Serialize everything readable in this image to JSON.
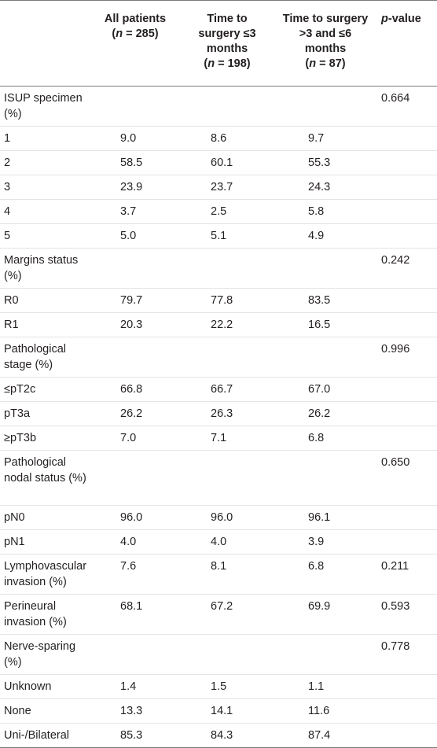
{
  "header": {
    "col0": "",
    "col1_line1": "All patients",
    "col1_n_label": "n",
    "col1_n_value": " = 285)",
    "col2_line1": "Time to",
    "col2_line2": "surgery ≤3",
    "col2_line3": "months",
    "col2_n_label": "n",
    "col2_n_value": " = 198)",
    "col3_line1": "Time to surgery",
    "col3_line2": ">3 and ≤6",
    "col3_line3": "months",
    "col3_n_label": "n",
    "col3_n_value": " = 87)",
    "col4_p": "p",
    "col4_rest": "-value"
  },
  "rows": [
    {
      "label": "ISUP specimen (%)",
      "all": "",
      "le3": "",
      "gt3": "",
      "p": "0.664"
    },
    {
      "label": "1",
      "all": "9.0",
      "le3": "8.6",
      "gt3": "9.7",
      "p": ""
    },
    {
      "label": "2",
      "all": "58.5",
      "le3": "60.1",
      "gt3": "55.3",
      "p": ""
    },
    {
      "label": "3",
      "all": "23.9",
      "le3": "23.7",
      "gt3": "24.3",
      "p": ""
    },
    {
      "label": "4",
      "all": "3.7",
      "le3": "2.5",
      "gt3": "5.8",
      "p": ""
    },
    {
      "label": "5",
      "all": "5.0",
      "le3": "5.1",
      "gt3": "4.9",
      "p": ""
    },
    {
      "label": "Margins status (%)",
      "all": "",
      "le3": "",
      "gt3": "",
      "p": "0.242"
    },
    {
      "label": "R0",
      "all": "79.7",
      "le3": "77.8",
      "gt3": "83.5",
      "p": ""
    },
    {
      "label": "R1",
      "all": "20.3",
      "le3": "22.2",
      "gt3": "16.5",
      "p": ""
    },
    {
      "label": "Pathological stage (%)",
      "all": "",
      "le3": "",
      "gt3": "",
      "p": "0.996"
    },
    {
      "label": "≤pT2c",
      "all": "66.8",
      "le3": "66.7",
      "gt3": "67.0",
      "p": ""
    },
    {
      "label": "pT3a",
      "all": "26.2",
      "le3": "26.3",
      "gt3": "26.2",
      "p": ""
    },
    {
      "label": "≥pT3b",
      "all": "7.0",
      "le3": "7.1",
      "gt3": "6.8",
      "p": ""
    },
    {
      "label": "Pathological nodal status (%)",
      "all": "",
      "le3": "",
      "gt3": "",
      "p": "0.650"
    },
    {
      "label": "pN0",
      "all": "96.0",
      "le3": "96.0",
      "gt3": "96.1",
      "p": ""
    },
    {
      "label": "pN1",
      "all": "4.0",
      "le3": "4.0",
      "gt3": "3.9",
      "p": ""
    },
    {
      "label": "Lymphovascular invasion (%)",
      "all": "7.6",
      "le3": "8.1",
      "gt3": "6.8",
      "p": "0.211"
    },
    {
      "label": "Perineural invasion (%)",
      "all": "68.1",
      "le3": "67.2",
      "gt3": "69.9",
      "p": "0.593"
    },
    {
      "label": "Nerve-sparing (%)",
      "all": "",
      "le3": "",
      "gt3": "",
      "p": "0.778"
    },
    {
      "label": "Unknown",
      "all": "1.4",
      "le3": "1.5",
      "gt3": "1.1",
      "p": ""
    },
    {
      "label": "None",
      "all": "13.3",
      "le3": "14.1",
      "gt3": "11.6",
      "p": ""
    },
    {
      "label": "Uni-/Bilateral",
      "all": "85.3",
      "le3": "84.3",
      "gt3": "87.4",
      "p": ""
    }
  ]
}
